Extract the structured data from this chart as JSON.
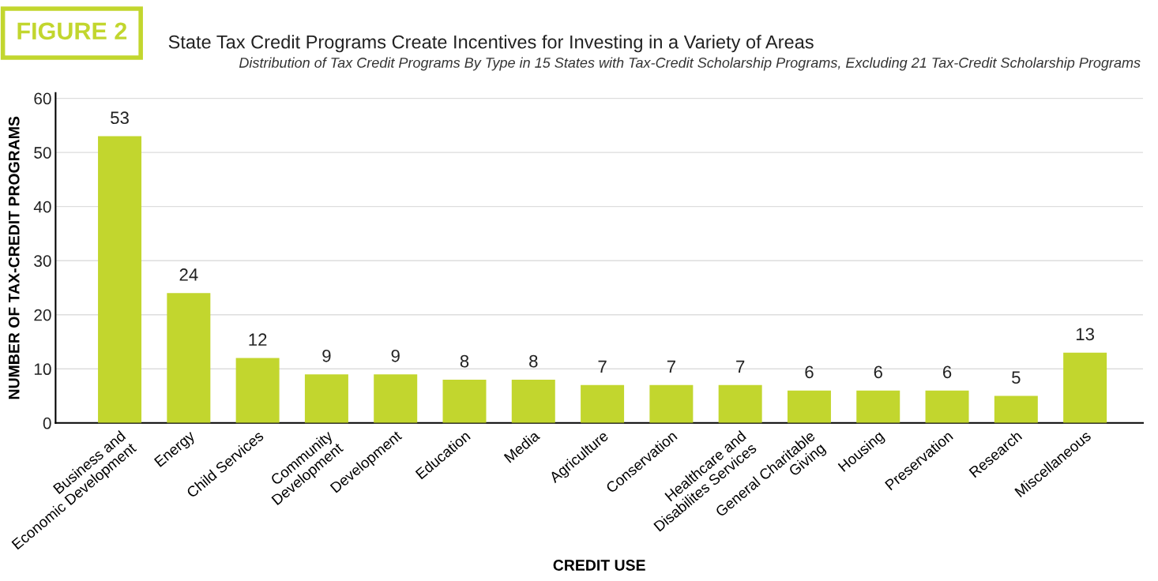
{
  "chart_data": {
    "type": "bar",
    "title": "State Tax Credit Programs Create Incentives for Investing in a Variety of Areas",
    "subtitle": "Distribution of Tax Credit Programs By Type in 15 States with Tax-Credit Scholarship Programs, Excluding 21 Tax-Credit Scholarship Programs",
    "annotations": [
      "FIGURE 2"
    ],
    "xlabel": "CREDIT USE",
    "ylabel": "NUMBER OF TAX-CREDIT PROGRAMS",
    "categories": [
      "Business and\nEconomic Development",
      "Energy",
      "Child Services",
      "Community\nDevelopment",
      "Development",
      "Education",
      "Media",
      "Agriculture",
      "Conservation",
      "Healthcare and\nDisabilites Services",
      "General Charitable\nGiving",
      "Housing",
      "Preservation",
      "Research",
      "Miscellaneous"
    ],
    "values": [
      53,
      24,
      12,
      9,
      9,
      8,
      8,
      7,
      7,
      7,
      6,
      6,
      6,
      5,
      13
    ],
    "color": "#c2d62e",
    "ylim": [
      0,
      61
    ],
    "yticks": [
      0,
      10,
      20,
      30,
      40,
      50,
      60
    ],
    "grid": "y",
    "data_labels": true
  }
}
